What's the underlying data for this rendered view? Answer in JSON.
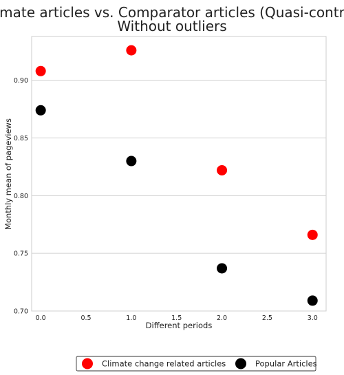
{
  "chart_data": {
    "type": "scatter",
    "title": "Climate articles vs. Comparator articles (Quasi-control)",
    "subtitle": "Without outliers",
    "xlabel": "Different periods",
    "ylabel": "Monthly mean of pageviews",
    "xlim": [
      -0.1,
      3.15
    ],
    "ylim": [
      0.7,
      0.938
    ],
    "x_ticks": [
      "0.0",
      "0.5",
      "1.0",
      "1.5",
      "2.0",
      "2.5",
      "3.0"
    ],
    "y_ticks": [
      "0.70",
      "0.75",
      "0.80",
      "0.85",
      "0.90"
    ],
    "grid": "horizontal",
    "legend_position": "bottom-center",
    "series": [
      {
        "name": "Climate change related articles",
        "color": "#ff0000",
        "points": [
          {
            "x": 0,
            "y": 0.908
          },
          {
            "x": 1,
            "y": 0.926
          },
          {
            "x": 2,
            "y": 0.822
          },
          {
            "x": 3,
            "y": 0.766
          }
        ]
      },
      {
        "name": "Popular Articles",
        "color": "#000000",
        "points": [
          {
            "x": 0,
            "y": 0.874
          },
          {
            "x": 1,
            "y": 0.83
          },
          {
            "x": 2,
            "y": 0.737
          },
          {
            "x": 3,
            "y": 0.709
          }
        ]
      }
    ]
  }
}
